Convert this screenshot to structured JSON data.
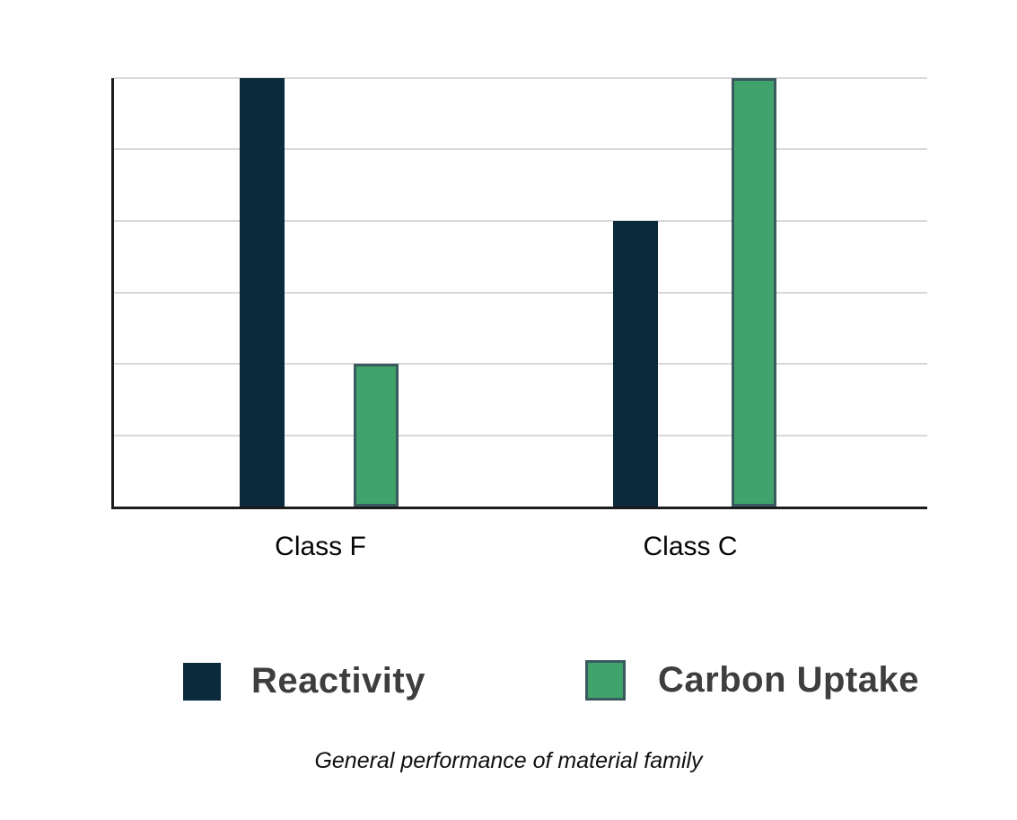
{
  "chart_data": {
    "type": "bar",
    "categories": [
      "Class F",
      "Class C"
    ],
    "series": [
      {
        "name": "Reactivity",
        "values": [
          6,
          4
        ],
        "color": "#0b2a3c",
        "border_color": null
      },
      {
        "name": "Carbon Uptake",
        "values": [
          2,
          6
        ],
        "color": "#41a36c",
        "border_color": "#3b5a60"
      }
    ],
    "title": "General performance of material family",
    "xlabel": "",
    "ylabel": "",
    "ylim": [
      0,
      6
    ],
    "gridline_divisions": 6,
    "grid": true,
    "y_tick_labels": [],
    "legend_position": "bottom"
  },
  "colors": {
    "axis": "#1c1c1c",
    "gridline": "#d8d8d8",
    "category_label": "#060606",
    "legend_text": "#3e3e3e",
    "caption_text": "#101010",
    "background": "#ffffff"
  }
}
